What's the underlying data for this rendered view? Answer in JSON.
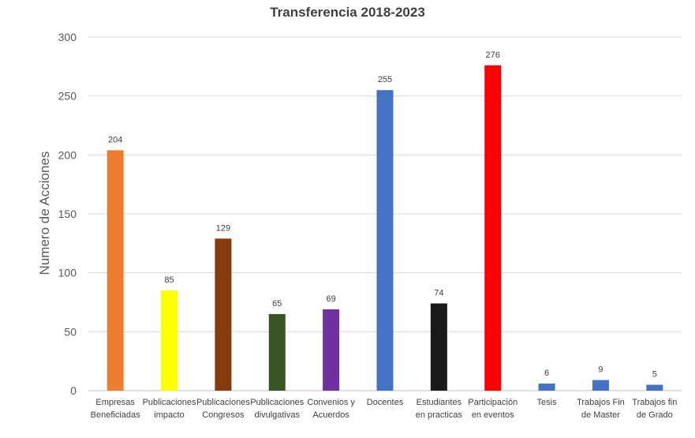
{
  "chart_data": {
    "type": "bar",
    "title": "Transferencia 2018-2023",
    "xlabel": "",
    "ylabel": "Numero de Acciones",
    "ylim": [
      0,
      300
    ],
    "yticks": [
      0,
      50,
      100,
      150,
      200,
      250,
      300
    ],
    "grid": true,
    "legend": "none",
    "categories": [
      [
        "Empresas",
        "Beneficiadas"
      ],
      [
        "Publicaciones",
        "impacto"
      ],
      [
        "Publicaciones",
        "Congresos"
      ],
      [
        "Publicaciones",
        "divulgativas"
      ],
      [
        "Convenios y",
        "Acuerdos"
      ],
      [
        "Docentes"
      ],
      [
        "Estudiantes",
        "en practicas"
      ],
      [
        "Participación",
        "en eventos"
      ],
      [
        "Tesis"
      ],
      [
        "Trabajos Fin",
        "de Master"
      ],
      [
        "Trabajos fin",
        "de Grado"
      ]
    ],
    "values": [
      204,
      85,
      129,
      65,
      69,
      255,
      74,
      276,
      6,
      9,
      5
    ],
    "colors": [
      "#ED7D31",
      "#FFFF00",
      "#843C0C",
      "#375623",
      "#7030A0",
      "#4472C4",
      "#1A1A1A",
      "#FF0000",
      "#4472C4",
      "#4472C4",
      "#4472C4"
    ]
  }
}
